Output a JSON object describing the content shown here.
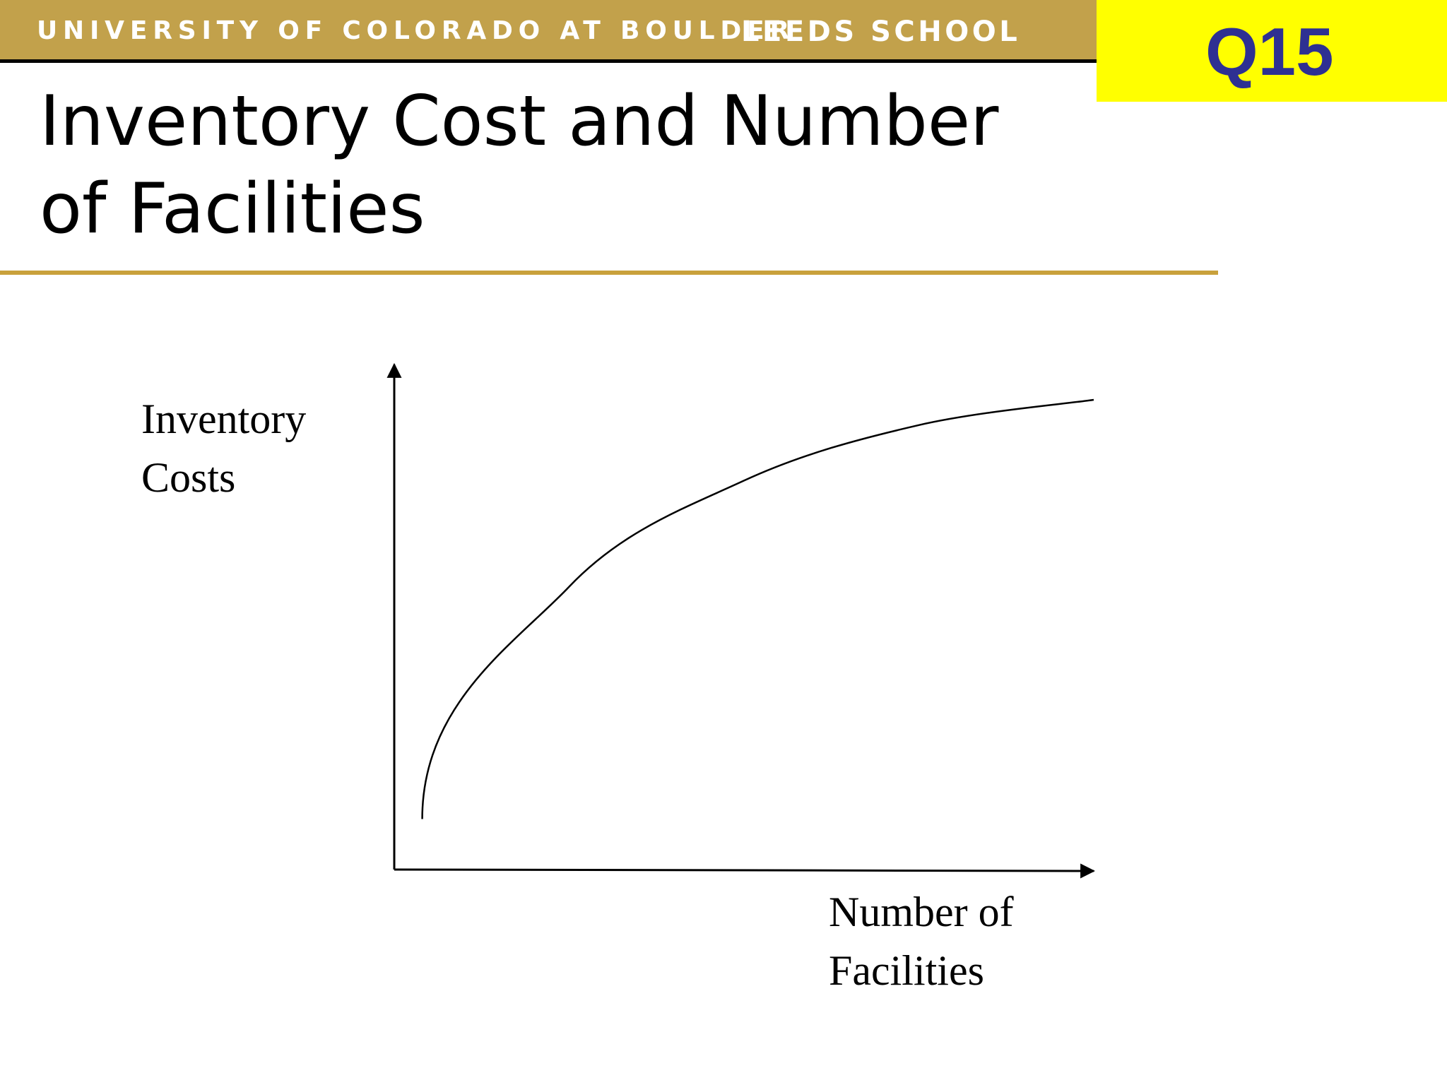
{
  "header": {
    "university": "UNIVERSITY OF COLORADO AT BOULDER",
    "school": "LEEDS SCHOOL"
  },
  "question_label": "Q15",
  "slide": {
    "title": "Inventory Cost and Number of Facilities"
  },
  "colors": {
    "banner": "#c2a14b",
    "title_rule": "#c9a13c",
    "question_box": "#ffff00",
    "question_text": "#2e3092"
  },
  "chart_data": {
    "type": "line",
    "ylabel_lines": [
      "Inventory",
      "Costs"
    ],
    "xlabel_lines": [
      "Number of",
      "Facilities"
    ],
    "grid": false,
    "legend": "none",
    "series": [
      {
        "shape": "concave-increasing",
        "points": [
          [
            0.04,
            0.1
          ],
          [
            0.25,
            0.56
          ],
          [
            0.5,
            0.77
          ],
          [
            0.75,
            0.88
          ],
          [
            1.0,
            0.93
          ]
        ]
      }
    ]
  }
}
